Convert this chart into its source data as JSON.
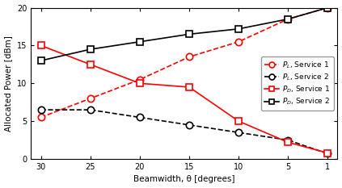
{
  "x": [
    30,
    25,
    20,
    15,
    10,
    5,
    1
  ],
  "PL_service1": [
    5.5,
    8.0,
    10.5,
    13.5,
    15.5,
    18.5,
    20.0
  ],
  "PL_service2": [
    6.5,
    6.5,
    5.5,
    4.5,
    3.5,
    2.5,
    0.7
  ],
  "PD_service1": [
    15.0,
    12.5,
    10.0,
    9.5,
    5.0,
    2.2,
    0.8
  ],
  "PD_service2": [
    13.0,
    14.5,
    15.5,
    16.5,
    17.2,
    18.5,
    20.0
  ],
  "ylabel": "Allocated Power [dBm]",
  "xlabel": "Beamwidth, θ [degrees]",
  "ylim": [
    0,
    20
  ],
  "yticks": [
    0,
    5,
    10,
    15,
    20
  ],
  "xticks": [
    30,
    25,
    20,
    15,
    10,
    5,
    1
  ],
  "color_red": "#FF0000",
  "color_black": "#000000",
  "background": "#FFFFFF"
}
